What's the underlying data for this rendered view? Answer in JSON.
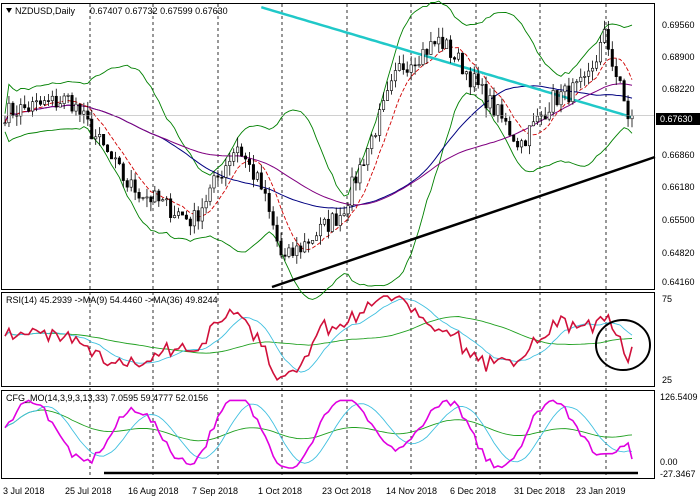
{
  "chart_data": [
    {
      "type": "candlestick",
      "panel": "price",
      "symbol_label": "NZDUSD,Daily",
      "ohlc_label": "0.67407 0.67732 0.67599 0.67630",
      "last_price_label": "0.67630",
      "ylim": [
        0.638,
        0.701
      ],
      "y_ticks": [
        "0.69560",
        "0.68900",
        "0.68220",
        "0.67540",
        "0.66860",
        "0.66180",
        "0.65500",
        "0.64820",
        "0.64160"
      ],
      "overlays": [
        "moving-average-fast-red",
        "moving-average-slow-blue",
        "moving-average-purple",
        "moving-average-cyan",
        "bollinger-bands-green",
        "support-trendline-black"
      ],
      "approx_close_path": [
        {
          "date": "3 Jul 2018",
          "close": 0.677
        },
        {
          "date": "25 Jul 2018",
          "close": 0.68
        },
        {
          "date": "16 Aug 2018",
          "close": 0.661
        },
        {
          "date": "7 Sep 2018",
          "close": 0.653
        },
        {
          "date": "26 Sep 2018",
          "close": 0.67
        },
        {
          "date": "1 Oct 2018",
          "close": 0.66
        },
        {
          "date": "8 Oct 2018",
          "close": 0.644
        },
        {
          "date": "23 Oct 2018",
          "close": 0.655
        },
        {
          "date": "14 Nov 2018",
          "close": 0.687
        },
        {
          "date": "3 Dec 2018",
          "close": 0.693
        },
        {
          "date": "6 Dec 2018",
          "close": 0.688
        },
        {
          "date": "31 Dec 2018",
          "close": 0.67
        },
        {
          "date": "10 Jan 2019",
          "close": 0.68
        },
        {
          "date": "23 Jan 2019",
          "close": 0.683
        },
        {
          "date": "6 Feb 2019",
          "close": 0.694
        },
        {
          "date": "15 Feb 2019",
          "close": 0.6763
        }
      ]
    },
    {
      "type": "line",
      "panel": "rsi",
      "label": "RSI(14) 45.2939  ->MA(9) 54.4460  ->MA(36) 49.8244",
      "ylim": [
        20,
        80
      ],
      "y_ticks": [
        "75",
        "25"
      ],
      "series": [
        {
          "name": "RSI(14)",
          "last": 45.2939
        },
        {
          "name": "MA(9)",
          "last": 54.446
        },
        {
          "name": "MA(36)",
          "last": 49.8244
        }
      ]
    },
    {
      "type": "line",
      "panel": "cfg_mo",
      "label": "CFG_MO(14,3,9,3,13,33) 7.0595 59.4777 52.0156",
      "y_ticks": [
        "126.5409",
        "0.00",
        "-27.3467"
      ],
      "ylim": [
        -27.3467,
        126.5409
      ],
      "series": [
        {
          "name": "",
          "last": 7.0595
        },
        {
          "name": "",
          "last": 59.4777
        },
        {
          "name": "",
          "last": 52.0156
        }
      ]
    }
  ],
  "x_axis": {
    "labels": [
      "3 Jul 2018",
      "25 Jul 2018",
      "16 Aug 2018",
      "7 Sep 2018",
      "1 Oct 2018",
      "23 Oct 2018",
      "14 Nov 2018",
      "6 Dec 2018",
      "31 Dec 2018",
      "23 Jan 2019"
    ]
  },
  "colors": {
    "bull_candle": "#000000",
    "price_line_red": "#d00000",
    "ma_blue": "#000080",
    "ma_purple": "#800080",
    "ma_cyan": "#20c8c8",
    "bands_green": "#008000",
    "rsi": "#d0103a",
    "rsi_ma_fast": "#40c0e0",
    "rsi_ma_slow": "#20a020",
    "osc": "#e000e0",
    "osc_ma": "#40c0e0",
    "osc_ma2": "#20a020"
  }
}
